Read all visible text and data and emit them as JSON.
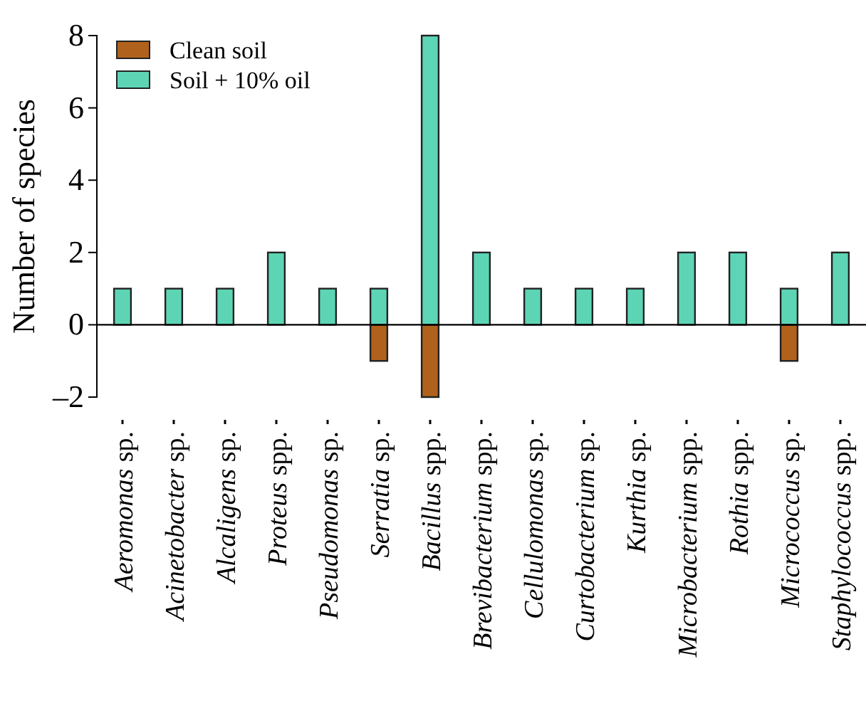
{
  "chart_data": {
    "type": "bar",
    "stacked": true,
    "ylabel": "Number of species",
    "categories": [
      "Aeromonas sp.",
      "Acinetobacter sp.",
      "Alcaligens sp.",
      "Proteus spp.",
      "Pseudomonas sp.",
      "Serratia sp.",
      "Bacillus spp.",
      "Brevibacterium spp.",
      "Cellulomonas sp.",
      "Curtobacterium sp.",
      "Kurthia sp.",
      "Microbacterium spp.",
      "Rothia spp.",
      "Micrococcus sp.",
      "Staphylococcus spp."
    ],
    "series": [
      {
        "name": "Clean soil",
        "color": "#b0621c",
        "values": [
          null,
          null,
          null,
          null,
          null,
          -1,
          -2,
          null,
          null,
          null,
          null,
          null,
          null,
          -1,
          null
        ]
      },
      {
        "name": "Soil + 10% oil",
        "color": "#5dd5b5",
        "values": [
          1,
          1,
          1,
          2,
          1,
          1,
          8,
          2,
          1,
          1,
          1,
          2,
          2,
          1,
          2
        ]
      }
    ],
    "ylim": [
      -2,
      8
    ],
    "yticks": [
      {
        "value": -2,
        "label": "–2"
      },
      0,
      2,
      4,
      6,
      8
    ],
    "legend": "top left"
  }
}
